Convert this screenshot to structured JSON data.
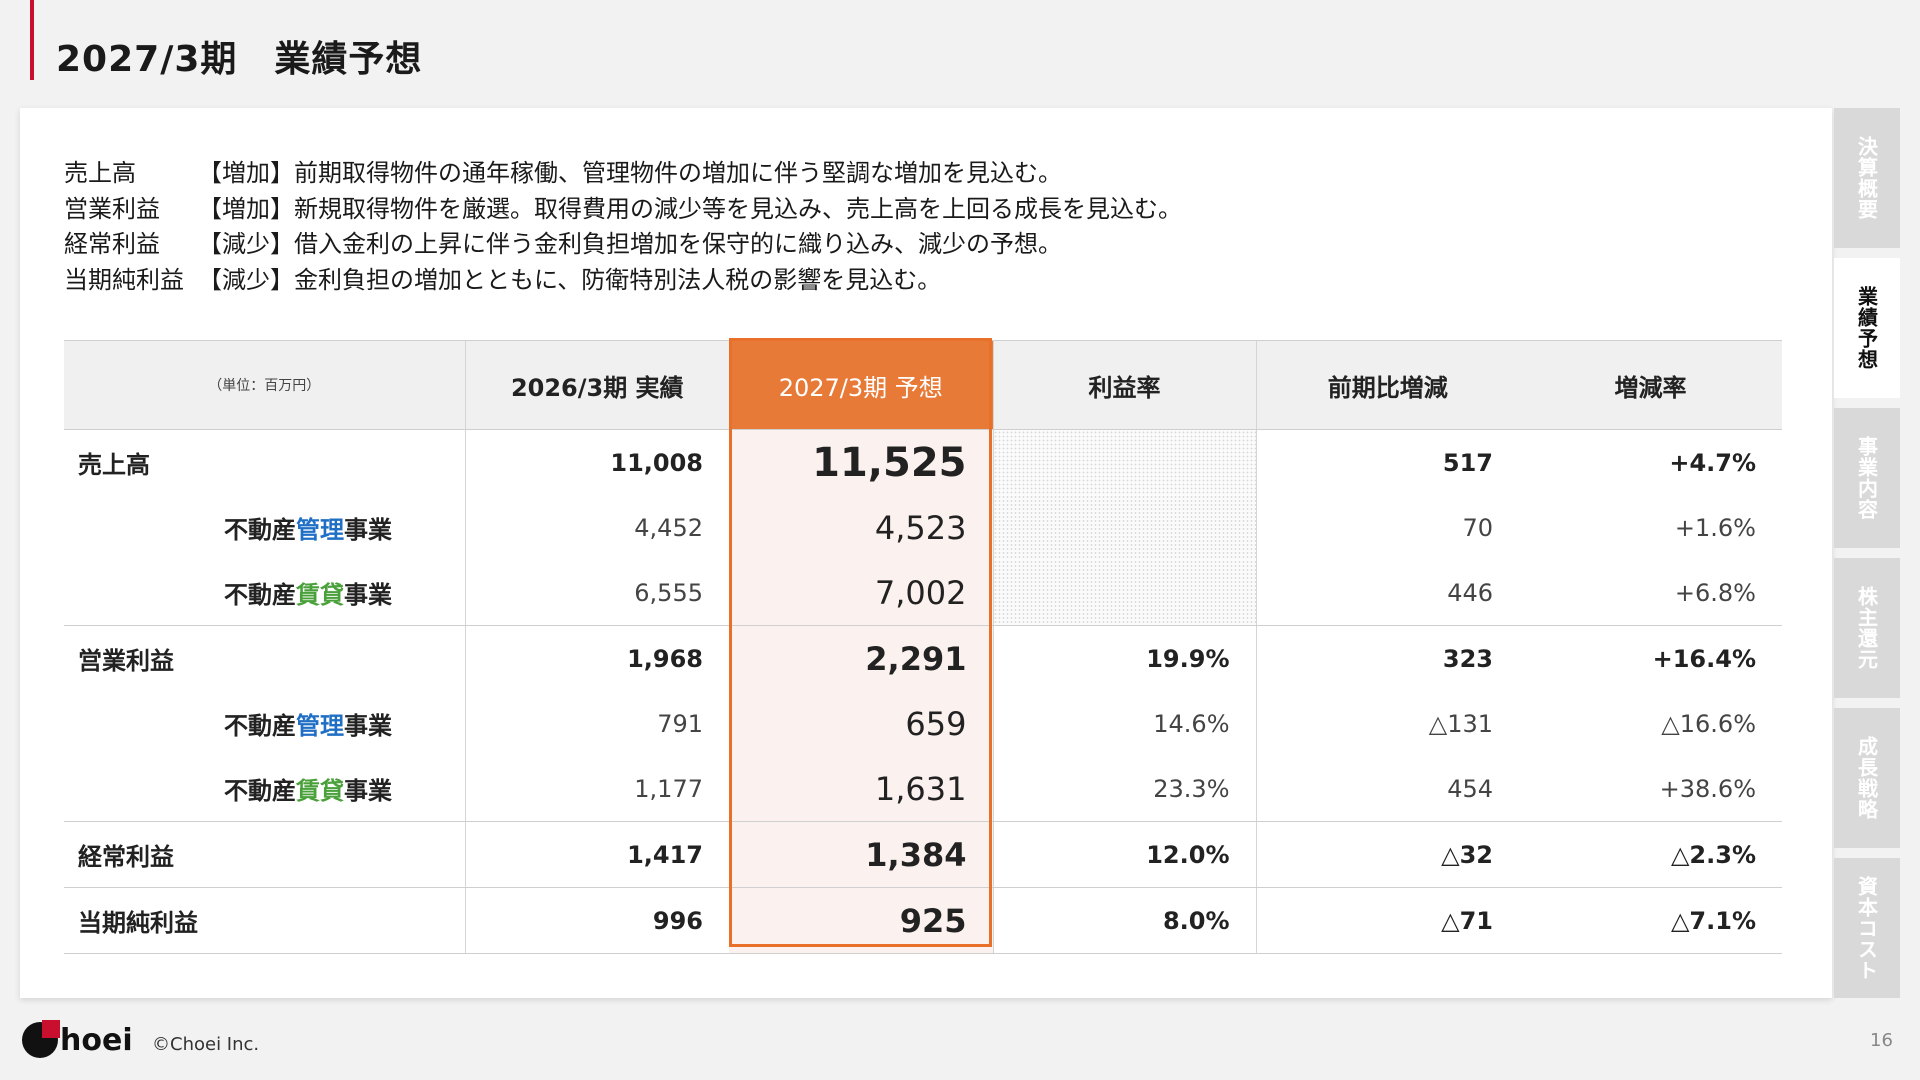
{
  "title": "2027/3期　業績予想",
  "notes": [
    {
      "label": "売上高",
      "text": "【増加】前期取得物件の通年稼働、管理物件の増加に伴う堅調な増加を見込む。"
    },
    {
      "label": "営業利益",
      "text": "【増加】新規取得物件を厳選。取得費用の減少等を見込み、売上高を上回る成長を見込む。"
    },
    {
      "label": "経常利益",
      "text": "【減少】借入金利の上昇に伴う金利負担増加を保守的に織り込み、減少の予想。"
    },
    {
      "label": "当期純利益",
      "text": "【減少】金利負担の増加とともに、防衛特別法人税の影響を見込む。"
    }
  ],
  "table": {
    "unit": "（単位：百万円）",
    "headers": [
      "2026/3期 実績",
      "2027/3期 予想",
      "利益率",
      "前期比増減",
      "増減率"
    ],
    "seg_prefix": "不動産",
    "seg_suffix": "事業",
    "seg_kanri": "管理",
    "seg_chintai": "賃貸",
    "sales": {
      "label": "売上高",
      "actual": "11,008",
      "forecast": "11,525",
      "diff": "517",
      "rate": "+4.7%"
    },
    "sales_kanri": {
      "actual": "4,452",
      "forecast": "4,523",
      "diff": "70",
      "rate": "+1.6%"
    },
    "sales_chintai": {
      "actual": "6,555",
      "forecast": "7,002",
      "diff": "446",
      "rate": "+6.8%"
    },
    "op": {
      "label": "営業利益",
      "actual": "1,968",
      "forecast": "2,291",
      "margin": "19.9%",
      "diff": "323",
      "rate": "+16.4%"
    },
    "op_kanri": {
      "actual": "791",
      "forecast": "659",
      "margin": "14.6%",
      "diff": "△131",
      "rate": "△16.6%"
    },
    "op_chintai": {
      "actual": "1,177",
      "forecast": "1,631",
      "margin": "23.3%",
      "diff": "454",
      "rate": "+38.6%"
    },
    "ord": {
      "label": "経常利益",
      "actual": "1,417",
      "forecast": "1,384",
      "margin": "12.0%",
      "diff": "△32",
      "rate": "△2.3%"
    },
    "net": {
      "label": "当期純利益",
      "actual": "996",
      "forecast": "925",
      "margin": "8.0%",
      "diff": "△71",
      "rate": "△7.1%"
    }
  },
  "sidebar": {
    "tabs": [
      "決算概要",
      "業績予想",
      "事業内容",
      "株主還元",
      "成長戦略",
      "資本コスト"
    ],
    "active": "業績予想"
  },
  "footer": {
    "logo": "hoei",
    "copyright": "©Choei Inc.",
    "page": "16"
  },
  "colors": {
    "accent": "#e8702a",
    "brand": "#c8102e",
    "kanri": "#1f6fc5",
    "chintai": "#4aa03a"
  }
}
